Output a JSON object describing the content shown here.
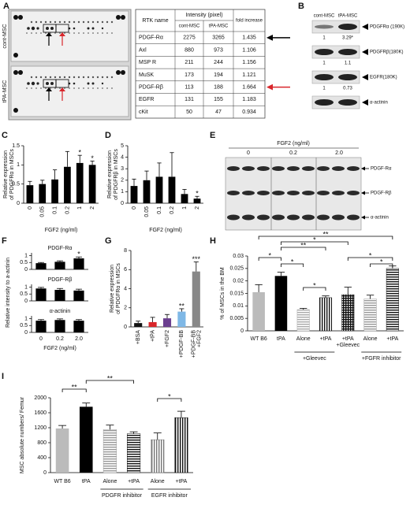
{
  "panel_labels": [
    "A",
    "B",
    "C",
    "D",
    "E",
    "F",
    "G",
    "H",
    "I"
  ],
  "array": {
    "rows": [
      "cont-MSC",
      "tPA-MSC"
    ]
  },
  "table": {
    "header": [
      "RTK name",
      "Intensity (pixel)",
      "fold increase"
    ],
    "subheader": [
      "cont-MSC",
      "tPA-MSC"
    ],
    "rows": [
      [
        "PDGF-Rα",
        2275,
        3265,
        1.435
      ],
      [
        "Axl",
        880,
        973,
        1.106
      ],
      [
        "MSP R",
        211,
        244,
        1.156
      ],
      [
        "MuSK",
        173,
        194,
        1.121
      ],
      [
        "PDGF-Rβ",
        113,
        188,
        1.664
      ],
      [
        "EGFR",
        131,
        155,
        1.183
      ],
      [
        "cKit",
        50,
        47,
        0.934
      ]
    ]
  },
  "blot_b": {
    "columns": [
      "cont-MSC",
      "tPA-MSC"
    ],
    "bands": [
      {
        "label": "PDGFRα (190K)",
        "quant": [
          1,
          "3.29*"
        ]
      },
      {
        "label": "PDGFRβ(180K)",
        "quant": [
          1,
          1.1
        ]
      },
      {
        "label": "EGFR(180K)",
        "quant": [
          1,
          0.73
        ]
      },
      {
        "label": "α-actinin"
      }
    ]
  },
  "blot_e": {
    "title": "FGF2 (ng/ml)",
    "columns": [
      "0",
      "0.2",
      "2.0"
    ],
    "bands": [
      "PDGF-Rα",
      "PDGF-Rβ",
      "α-actinin"
    ]
  },
  "chart_data": [
    {
      "type": "bar",
      "categories": [
        "0",
        "0.05",
        "0.1",
        "0.2",
        "1",
        "2"
      ],
      "values": [
        0.47,
        0.5,
        0.62,
        0.95,
        1.05,
        1.0
      ],
      "errors": [
        0.1,
        0.1,
        0.25,
        0.4,
        0.2,
        0.1
      ],
      "stars": [
        null,
        null,
        null,
        null,
        "*",
        "*"
      ],
      "color": "#000",
      "ylim": [
        0,
        1.5
      ],
      "yticks": [
        0,
        0.5,
        1,
        1.5
      ],
      "ylabel": [
        "Relative expression",
        "of PDGFRα in MSCs"
      ],
      "xlabel": "FGF2 (ng/ml)"
    },
    {
      "type": "bar",
      "categories": [
        "0",
        "0.05",
        "0.1",
        "0.2",
        "1",
        "2"
      ],
      "values": [
        1.5,
        2,
        2.3,
        2.3,
        0.8,
        0.4
      ],
      "errors": [
        0.6,
        0.8,
        1.2,
        2.1,
        0.4,
        0.2
      ],
      "stars": [
        null,
        null,
        null,
        null,
        null,
        "*"
      ],
      "color": "#000",
      "ylim": [
        0,
        5
      ],
      "yticks": [
        0,
        1,
        2,
        3,
        4,
        5
      ],
      "ylabel": [
        "Relative expression",
        "of PDGFRβ in MSCs"
      ],
      "xlabel": "FGF2 (ng/ml)"
    },
    {
      "type": "bar",
      "title": "PDGF-Rα",
      "values": [
        0.45,
        0.55,
        0.8
      ],
      "errors": [
        0.05,
        0.07,
        0.1
      ],
      "stars": [
        null,
        null,
        "*"
      ],
      "color": "#000",
      "ylim": [
        0,
        1.2
      ],
      "yticks": [
        0,
        0.5,
        1
      ]
    },
    {
      "type": "bar",
      "title": "PDGF-Rβ",
      "values": [
        0.9,
        0.8,
        0.75
      ],
      "errors": [
        0.08,
        0.1,
        0.1
      ],
      "color": "#000",
      "ylim": [
        0,
        1.2
      ],
      "yticks": [
        0,
        0.5,
        1
      ],
      "ylabel": [
        "Relative intensity to a-actinin"
      ]
    },
    {
      "type": "bar",
      "title": "α-actinin",
      "categories": [
        "0",
        "0.2",
        "2.0"
      ],
      "values": [
        0.85,
        0.9,
        0.85
      ],
      "errors": [
        0.08,
        0.08,
        0.08
      ],
      "color": "#000",
      "ylim": [
        0,
        1.2
      ],
      "yticks": [
        0,
        0.5,
        1
      ],
      "xlabel": "FGF2 (ng/ml)"
    },
    {
      "type": "bar",
      "categories": [
        "+BSA",
        "+tPA",
        "+FGF2",
        "+PDGF-BB",
        [
          "+PDGF-BB",
          "+FGF2"
        ]
      ],
      "values": [
        0.4,
        0.5,
        0.9,
        1.6,
        5.8
      ],
      "errors": [
        0.2,
        0.5,
        0.4,
        0.3,
        1
      ],
      "stars": [
        null,
        null,
        null,
        "**",
        "***"
      ],
      "colors": [
        "#111",
        "#d9262b",
        "#6b3f8f",
        "#7fb8e6",
        "#888"
      ],
      "ylim": [
        0,
        8
      ],
      "yticks": [
        0,
        2,
        4,
        6,
        8
      ],
      "ylabel": [
        "Relative expression",
        "of PDGFRα in MSCs"
      ]
    },
    {
      "type": "bar",
      "categories": [
        "WT B6",
        "tPA",
        "Alone",
        "+tPA",
        [
          "+tPA",
          "+Gleevec"
        ],
        "Alone",
        "+tPA"
      ],
      "values": [
        0.0155,
        0.022,
        0.0085,
        0.0133,
        0.0145,
        0.0128,
        0.025
      ],
      "errors": [
        0.003,
        0.0015,
        0.0005,
        0.0007,
        0.003,
        0.0015,
        0.001
      ],
      "colors": [
        "#bbb",
        "#000",
        "#aaa",
        "#111",
        "#111",
        "#999",
        "#111"
      ],
      "patterns": [
        "solid",
        "solid",
        "hlines",
        "vlines",
        "grid",
        "hlines",
        "hlines"
      ],
      "ylim": [
        0,
        0.03
      ],
      "yticks": [
        0,
        0.005,
        0.01,
        0.015,
        0.02,
        0.025,
        0.03
      ],
      "ylabel": [
        "% of MSCs in the BM"
      ],
      "brackets": [
        "**",
        "*",
        "**",
        "*",
        "*",
        "*",
        "*",
        "*"
      ],
      "groups": [
        "+Gleevec",
        "+FGFR inhibitor"
      ]
    },
    {
      "type": "bar",
      "categories": [
        "WT B6",
        "tPA",
        "Alone",
        "+tPA",
        "Alone",
        "+tPA"
      ],
      "values": [
        1180,
        1760,
        1150,
        1040,
        880,
        1470
      ],
      "errors": [
        80,
        100,
        120,
        50,
        180,
        170
      ],
      "colors": [
        "#bbb",
        "#000",
        "#999",
        "#111",
        "#777",
        "#111"
      ],
      "patterns": [
        "solid",
        "solid",
        "hlines",
        "hlines",
        "vlines",
        "vlines"
      ],
      "ylim": [
        0,
        2000
      ],
      "yticks": [
        0,
        400,
        800,
        1200,
        1600,
        2000
      ],
      "ylabel": [
        "MSC absolute numbers/ Femur"
      ],
      "brackets": [
        "**",
        "**",
        "*"
      ],
      "groups": [
        "PDGFR inhibitor",
        "EGFR inhibitor"
      ]
    }
  ]
}
